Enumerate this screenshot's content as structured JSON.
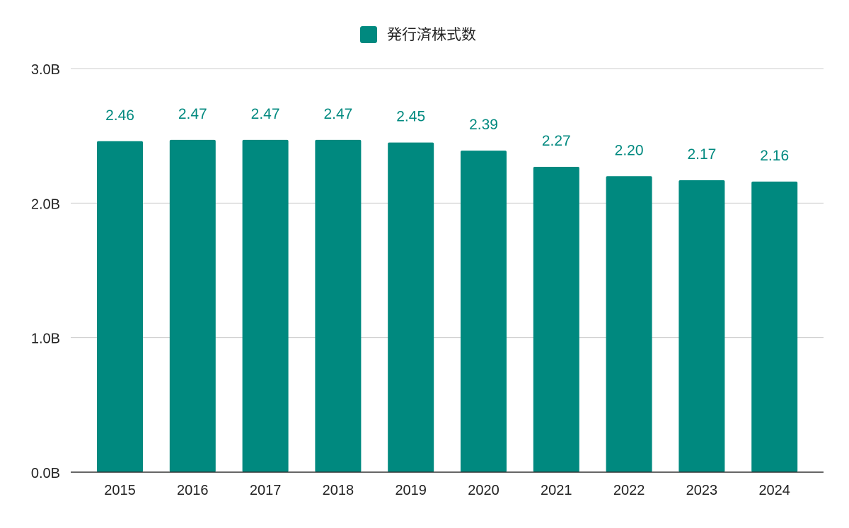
{
  "chart_data": {
    "type": "bar",
    "title": "",
    "xlabel": "",
    "ylabel": "",
    "categories": [
      "2015",
      "2016",
      "2017",
      "2018",
      "2019",
      "2020",
      "2021",
      "2022",
      "2023",
      "2024"
    ],
    "series": [
      {
        "name": "発行済株式数",
        "color": "#00897f",
        "values": [
          2.46,
          2.47,
          2.47,
          2.47,
          2.45,
          2.39,
          2.27,
          2.2,
          2.17,
          2.16
        ],
        "data_labels": [
          "2.46",
          "2.47",
          "2.47",
          "2.47",
          "2.45",
          "2.39",
          "2.27",
          "2.20",
          "2.17",
          "2.16"
        ]
      }
    ],
    "ylim": [
      0,
      3
    ],
    "yticks": [
      0,
      1,
      2,
      3
    ],
    "ytick_labels": [
      "0.0B",
      "1.0B",
      "2.0B",
      "3.0B"
    ],
    "grid": true,
    "legend_position": "top-center"
  }
}
